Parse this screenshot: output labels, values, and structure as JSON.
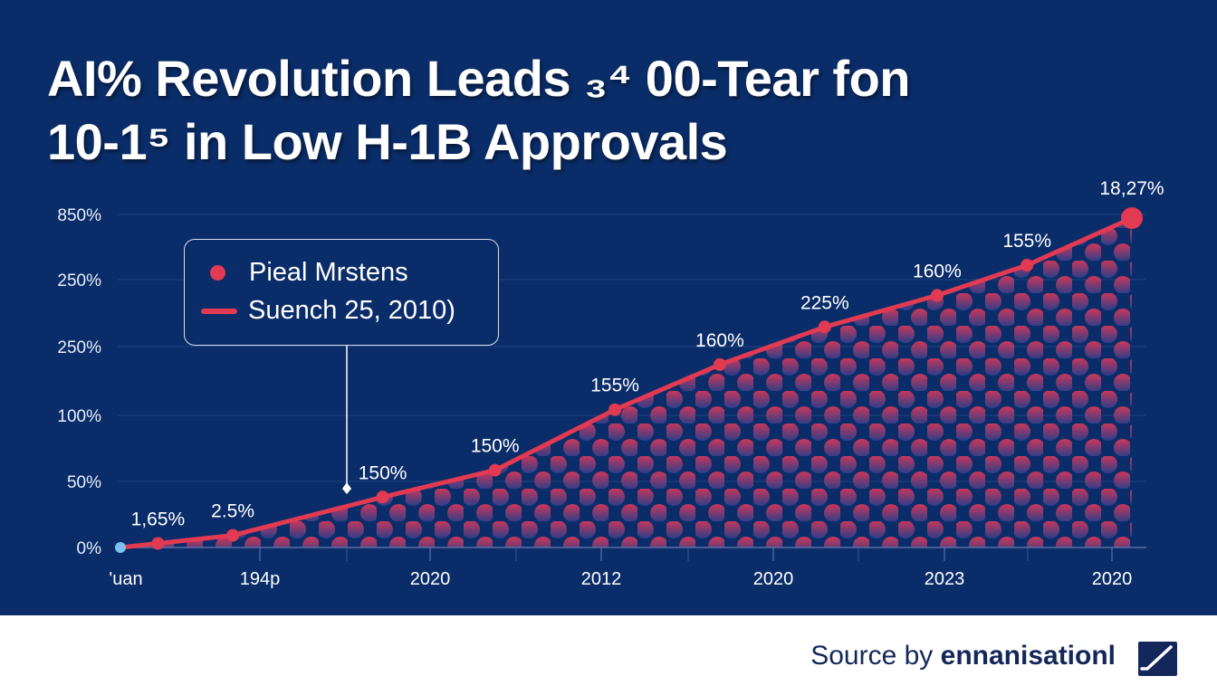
{
  "header": {
    "title_line1": "AI% Revolution Leads ₃⁴ 00-Tear fon",
    "title_line2": "10-1⁵ in Low H-1B Approvals"
  },
  "legend": {
    "items": [
      {
        "label": "Pieal Mrstens",
        "marker": "dot"
      },
      {
        "label": "Suench 25, 2010)",
        "marker": "line"
      }
    ]
  },
  "footer": {
    "source_prefix": "Source by",
    "source_brand": "ennanisationl",
    "logo_icon": "checkmark-square-icon"
  },
  "colors": {
    "background": "#0a2d69",
    "line": "#e23a52",
    "start_point": "#7cc2f0",
    "fill_top": "#d6385a",
    "fill_bottom": "#2d3f8a",
    "text": "#ffffff"
  },
  "chart_data": {
    "type": "area",
    "title": "AI% Revolution Leads 00-Tear fon 10-1 in Low H-1B Approvals",
    "xlabel": "",
    "ylabel": "",
    "y_tick_labels": [
      "0%",
      "50%",
      "100%",
      "250%",
      "250%",
      "850%"
    ],
    "y_tick_values": [
      0,
      1,
      2,
      3,
      4,
      5
    ],
    "ylim": [
      0,
      5.4
    ],
    "x_tick_labels": [
      "'uan",
      "194p",
      "2020",
      "2012",
      "2020",
      "2023",
      "2020"
    ],
    "grid": true,
    "legend_position": "upper-left",
    "series": [
      {
        "name": "Suench 25, 2010)",
        "x": [
          0,
          0.5,
          1.5,
          3.5,
          5,
          6.6,
          8,
          9.4,
          10.9,
          12.1,
          13.5
        ],
        "y": [
          0,
          0.06,
          0.18,
          0.75,
          1.15,
          2.05,
          2.72,
          3.28,
          3.75,
          4.2,
          4.9
        ],
        "labels": [
          "",
          "1,65%",
          "2.5%",
          "150%",
          "150%",
          "155%",
          "160%",
          "225%",
          "160%",
          "155%",
          "18,27%"
        ]
      }
    ],
    "annotations": [
      {
        "text": "Pieal Mrstens",
        "type": "callout"
      }
    ]
  }
}
